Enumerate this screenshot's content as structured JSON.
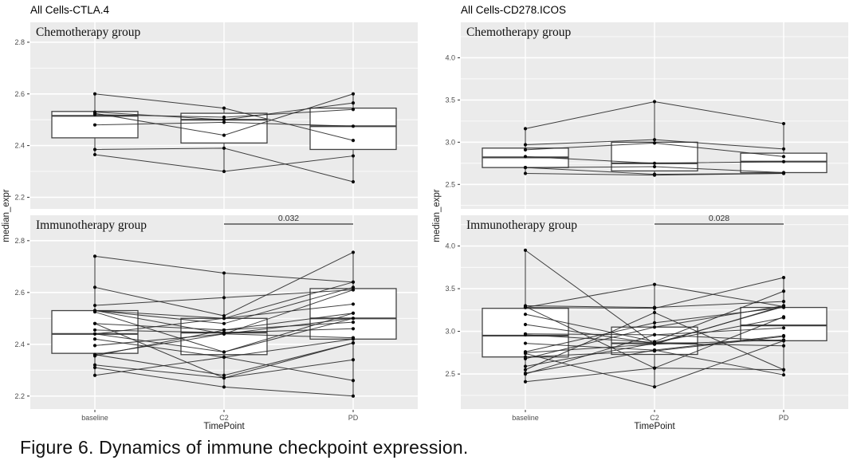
{
  "figure": {
    "caption": "Figure 6. Dynamics of immune checkpoint expression."
  },
  "colors": {
    "panel_bg": "#ebebeb",
    "grid": "#ffffff",
    "box_stroke": "#424242",
    "box_fill": "#ffffff",
    "subject_line": "#2a2a2a",
    "point": "#0a0a0a",
    "tick_label": "#4d4d4d",
    "axis_title": "#1a1a1a",
    "facet_label": "#111111",
    "title": "#000000",
    "pvalue_line": "#555555",
    "pvalue_text": "#333333"
  },
  "chart_data": [
    {
      "type": "bar",
      "subtype": "paired-boxplot-with-lines",
      "title": "All Cells-CTLA.4",
      "xlabel": "TimePoint",
      "ylabel": "median_expr",
      "categories": [
        "baseline",
        "C2",
        "PD"
      ],
      "yticks": [
        2.2,
        2.4,
        2.6,
        2.8
      ],
      "facets": [
        {
          "label": "Chemotherapy group",
          "ylim": [
            2.155,
            2.877
          ],
          "boxes": [
            {
              "lo": 2.365,
              "q1": 2.43,
              "median": 2.515,
              "q3": 2.532,
              "hi": 2.6
            },
            {
              "lo": 2.3,
              "q1": 2.41,
              "median": 2.5,
              "q3": 2.525,
              "hi": 2.545
            },
            {
              "lo": 2.26,
              "q1": 2.385,
              "median": 2.475,
              "q3": 2.545,
              "hi": 2.6
            }
          ],
          "subjects": [
            [
              2.6,
              2.545,
              2.42
            ],
            [
              2.525,
              2.44,
              2.6
            ],
            [
              2.53,
              2.5,
              2.565
            ],
            [
              2.52,
              2.51,
              2.54
            ],
            [
              2.48,
              2.49,
              2.475
            ],
            [
              2.385,
              2.39,
              2.26
            ],
            [
              2.365,
              2.3,
              2.36
            ]
          ]
        },
        {
          "label": "Immunotherapy group",
          "ylim": [
            2.15,
            2.898
          ],
          "pvalue": {
            "label": "0.032",
            "span": [
              1,
              2
            ]
          },
          "boxes": [
            {
              "lo": 2.28,
              "q1": 2.365,
              "median": 2.44,
              "q3": 2.53,
              "hi": 2.74
            },
            {
              "lo": 2.235,
              "q1": 2.36,
              "median": 2.445,
              "q3": 2.5,
              "hi": 2.675
            },
            {
              "lo": 2.2,
              "q1": 2.42,
              "median": 2.5,
              "q3": 2.615,
              "hi": 2.755
            }
          ],
          "subjects": [
            [
              2.74,
              2.675,
              2.64
            ],
            [
              2.62,
              2.51,
              2.755
            ],
            [
              2.55,
              2.58,
              2.61
            ],
            [
              2.53,
              2.5,
              2.64
            ],
            [
              2.53,
              2.44,
              2.61
            ],
            [
              2.525,
              2.37,
              2.52
            ],
            [
              2.48,
              2.455,
              2.485
            ],
            [
              2.455,
              2.445,
              2.46
            ],
            [
              2.44,
              2.5,
              2.555
            ],
            [
              2.42,
              2.35,
              2.42
            ],
            [
              2.395,
              2.44,
              2.5
            ],
            [
              2.36,
              2.28,
              2.405
            ],
            [
              2.355,
              2.455,
              2.52
            ],
            [
              2.32,
              2.27,
              2.34
            ],
            [
              2.31,
              2.235,
              2.2
            ],
            [
              2.28,
              2.35,
              2.26
            ],
            [
              2.53,
              2.48,
              2.62
            ],
            [
              2.44,
              2.37,
              2.5
            ],
            [
              2.36,
              2.44,
              2.425
            ],
            [
              2.48,
              2.27,
              2.405
            ]
          ]
        }
      ]
    },
    {
      "type": "bar",
      "subtype": "paired-boxplot-with-lines",
      "title": "All Cells-CD278.ICOS",
      "xlabel": "TimePoint",
      "ylabel": "median_expr",
      "categories": [
        "baseline",
        "C2",
        "PD"
      ],
      "yticks": [
        2.5,
        3.0,
        3.5,
        4.0
      ],
      "facets": [
        {
          "label": "Chemotherapy group",
          "ylim": [
            2.21,
            4.42
          ],
          "boxes": [
            {
              "lo": 2.63,
              "q1": 2.7,
              "median": 2.82,
              "q3": 2.93,
              "hi": 3.16
            },
            {
              "lo": 2.61,
              "q1": 2.66,
              "median": 2.75,
              "q3": 3.0,
              "hi": 3.48
            },
            {
              "lo": 2.63,
              "q1": 2.64,
              "median": 2.77,
              "q3": 2.87,
              "hi": 3.22
            }
          ],
          "subjects": [
            [
              3.16,
              3.48,
              3.22
            ],
            [
              2.97,
              3.03,
              2.92
            ],
            [
              2.91,
              2.99,
              2.83
            ],
            [
              2.83,
              2.75,
              2.77
            ],
            [
              2.7,
              2.71,
              2.64
            ],
            [
              2.7,
              2.62,
              2.63
            ],
            [
              2.63,
              2.61,
              2.63
            ]
          ]
        },
        {
          "label": "Immunotherapy group",
          "ylim": [
            2.09,
            4.36
          ],
          "pvalue": {
            "label": "0.028",
            "span": [
              1,
              2
            ]
          },
          "boxes": [
            {
              "lo": 2.41,
              "q1": 2.7,
              "median": 2.95,
              "q3": 3.27,
              "hi": 3.95
            },
            {
              "lo": 2.35,
              "q1": 2.73,
              "median": 2.86,
              "q3": 3.05,
              "hi": 3.55
            },
            {
              "lo": 2.49,
              "q1": 2.89,
              "median": 3.07,
              "q3": 3.28,
              "hi": 3.63
            }
          ],
          "subjects": [
            [
              3.95,
              2.85,
              3.3
            ],
            [
              3.3,
              3.28,
              3.35
            ],
            [
              3.29,
              2.57,
              3.17
            ],
            [
              3.28,
              3.27,
              3.63
            ],
            [
              3.2,
              2.88,
              3.47
            ],
            [
              3.08,
              2.86,
              3.29
            ],
            [
              2.97,
              2.96,
              3.04
            ],
            [
              2.96,
              2.87,
              3.16
            ],
            [
              2.86,
              2.78,
              2.95
            ],
            [
              2.76,
              3.1,
              3.28
            ],
            [
              2.75,
              2.85,
              2.9
            ],
            [
              2.74,
              2.35,
              2.89
            ],
            [
              2.7,
              2.77,
              2.94
            ],
            [
              2.68,
              3.05,
              3.3
            ],
            [
              2.59,
              2.86,
              2.83
            ],
            [
              2.55,
              3.22,
              2.55
            ],
            [
              2.51,
              2.78,
              2.49
            ],
            [
              2.5,
              2.96,
              2.89
            ],
            [
              2.41,
              2.57,
              2.55
            ],
            [
              3.28,
              3.55,
              3.29
            ]
          ]
        }
      ]
    }
  ]
}
